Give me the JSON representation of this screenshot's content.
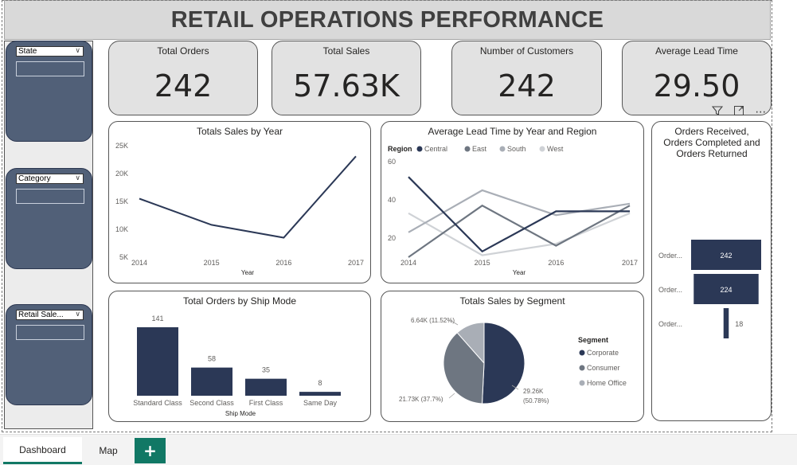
{
  "title": "RETAIL OPERATIONS PERFORMANCE",
  "slicers": [
    {
      "label": "State"
    },
    {
      "label": "Category"
    },
    {
      "label": "Retail Sale..."
    }
  ],
  "cards": [
    {
      "label": "Total Orders",
      "value": "242"
    },
    {
      "label": "Total Sales",
      "value": "57.63K"
    },
    {
      "label": "Number of Customers",
      "value": "242"
    },
    {
      "label": "Average Lead Time",
      "value": "29.50"
    }
  ],
  "visual_header_icons": [
    "filter-icon",
    "focus-mode-icon",
    "more-options-icon"
  ],
  "tabs": [
    {
      "label": "Dashboard",
      "active": true
    },
    {
      "label": "Map",
      "active": false
    }
  ],
  "add_page_symbol": "+",
  "colors": {
    "navy": "#2b3856",
    "slate": "#6e7681",
    "grey": "#a9aeb6",
    "light": "#cfd2d6",
    "accent": "#117865",
    "slicer": "#516078"
  },
  "chart_data": [
    {
      "id": "sales_by_year",
      "type": "line",
      "title": "Totals Sales by Year",
      "xlabel": "Year",
      "ylabel": "",
      "x": [
        "2014",
        "2015",
        "2016",
        "2017"
      ],
      "y_ticks": [
        "5K",
        "10K",
        "15K",
        "20K",
        "25K"
      ],
      "ylim": [
        5000,
        25000
      ],
      "series": [
        {
          "values": [
            15500,
            10800,
            8500,
            23100
          ],
          "color": "#2b3856"
        }
      ]
    },
    {
      "id": "lead_time_by_year_region",
      "type": "line",
      "title": "Average Lead Time by Year and Region",
      "xlabel": "Year",
      "legend_title": "Region",
      "x": [
        "2014",
        "2015",
        "2016",
        "2017"
      ],
      "y_ticks": [
        "20",
        "40",
        "60"
      ],
      "ylim": [
        10,
        60
      ],
      "series": [
        {
          "name": "Central",
          "color": "#2b3856",
          "values": [
            52,
            13,
            34,
            34
          ]
        },
        {
          "name": "East",
          "color": "#6e7681",
          "values": [
            10,
            37,
            16,
            37
          ]
        },
        {
          "name": "South",
          "color": "#a9aeb6",
          "values": [
            23,
            45,
            32,
            38
          ]
        },
        {
          "name": "West",
          "color": "#cfd2d6",
          "values": [
            33,
            11,
            17,
            33
          ]
        }
      ]
    },
    {
      "id": "orders_funnel",
      "type": "bar",
      "title": "Orders Received, Orders Completed and Orders Returned",
      "title_lines": [
        "Orders Received,",
        "Orders Completed and",
        "Orders Returned"
      ],
      "categories": [
        "Order...",
        "Order...",
        "Order..."
      ],
      "values": [
        242,
        224,
        18
      ],
      "value_labels": [
        "242",
        "224",
        "18"
      ]
    },
    {
      "id": "orders_by_ship_mode",
      "type": "bar",
      "title": "Total Orders by Ship Mode",
      "xlabel": "Ship Mode",
      "categories": [
        "Standard Class",
        "Second Class",
        "First Class",
        "Same Day"
      ],
      "values": [
        141,
        58,
        35,
        8
      ],
      "ylim": [
        0,
        141
      ]
    },
    {
      "id": "sales_by_segment",
      "type": "pie",
      "title": "Totals Sales by Segment",
      "legend_title": "Segment",
      "slices": [
        {
          "name": "Corporate",
          "value": 29260,
          "percent": 50.78,
          "label": "29.26K (50.78%)",
          "color": "#2b3856"
        },
        {
          "name": "Consumer",
          "value": 21730,
          "percent": 37.7,
          "label": "21.73K (37.7%)",
          "color": "#6e7681"
        },
        {
          "name": "Home Office",
          "value": 6640,
          "percent": 11.52,
          "label": "6.64K (11.52%)",
          "color": "#a9aeb6"
        }
      ]
    }
  ]
}
